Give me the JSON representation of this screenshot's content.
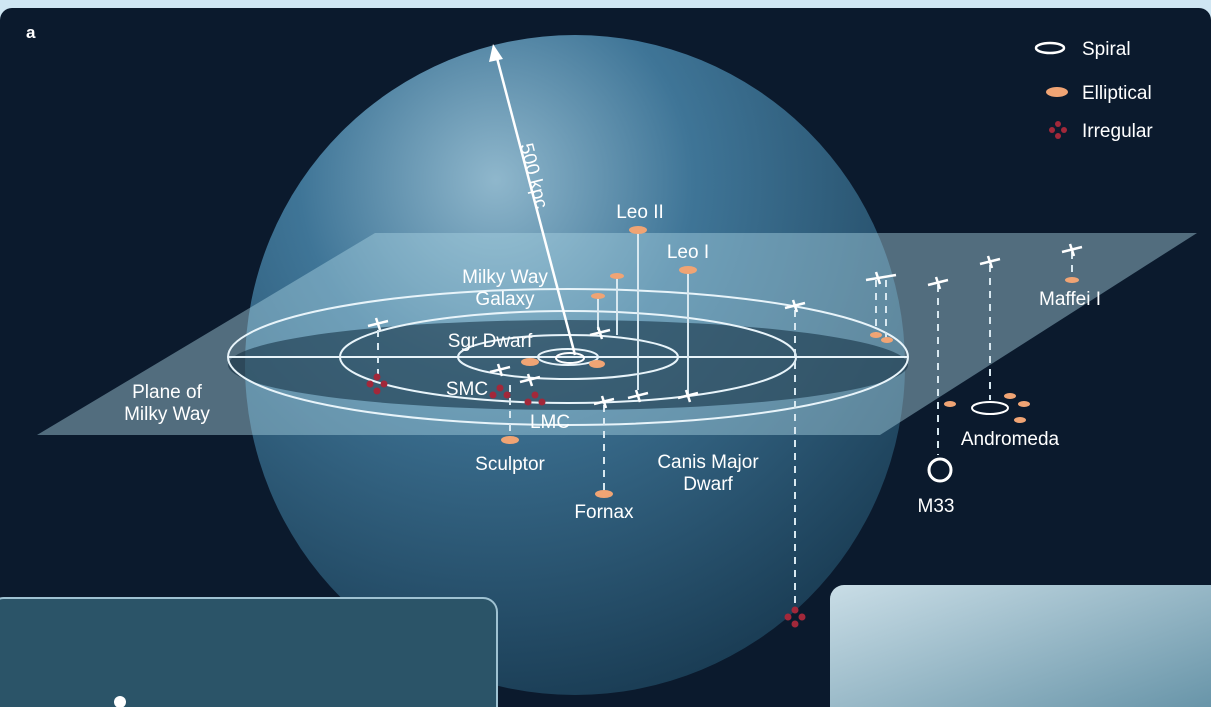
{
  "panel_label": "a",
  "legend": [
    {
      "label": "Spiral"
    },
    {
      "label": "Elliptical"
    },
    {
      "label": "Irregular"
    }
  ],
  "scale_label": "500 kpc",
  "objects": [
    {
      "label": [
        "Leo II"
      ]
    },
    {
      "label": [
        "Leo I"
      ]
    },
    {
      "label": [
        "Milky Way",
        "Galaxy"
      ]
    },
    {
      "label": [
        "Sgr Dwarf"
      ]
    },
    {
      "label": [
        "SMC"
      ]
    },
    {
      "label": [
        "LMC"
      ]
    },
    {
      "label": [
        "Plane of",
        "Milky Way"
      ]
    },
    {
      "label": [
        "Sculptor"
      ]
    },
    {
      "label": [
        "Canis Major",
        "Dwarf"
      ]
    },
    {
      "label": [
        "Fornax"
      ]
    },
    {
      "label": [
        "Maffei I"
      ]
    },
    {
      "label": [
        "Andromeda"
      ]
    },
    {
      "label": [
        "M33"
      ]
    }
  ]
}
